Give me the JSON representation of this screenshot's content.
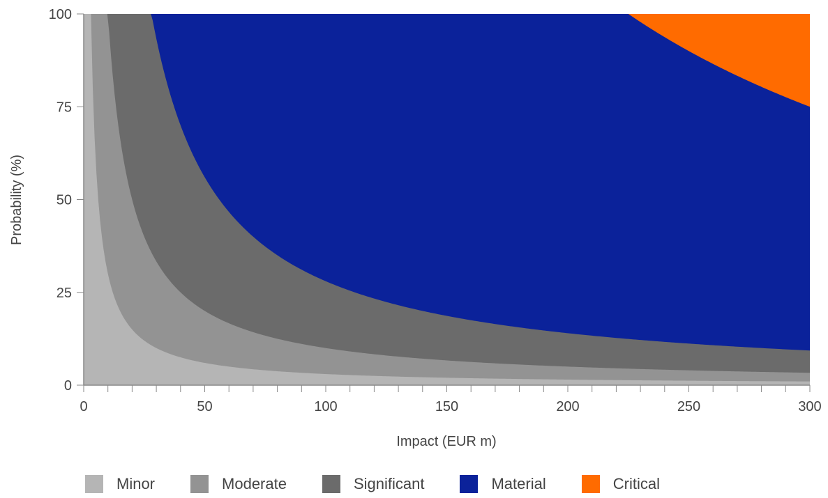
{
  "chart_data": {
    "type": "area",
    "xlabel": "Impact (EUR m)",
    "ylabel": "Probability (%)",
    "xlim": [
      0,
      300
    ],
    "ylim": [
      0,
      100
    ],
    "x_ticks": [
      "0",
      "50",
      "100",
      "150",
      "200",
      "250",
      "300"
    ],
    "y_ticks": [
      "0",
      "25",
      "50",
      "75",
      "100"
    ],
    "x_tick_values": [
      0,
      50,
      100,
      150,
      200,
      250,
      300
    ],
    "y_tick_values": [
      0,
      25,
      50,
      75,
      100
    ],
    "x_minor_tick_step": 10,
    "grid": false,
    "legend_position": "bottom",
    "band_boundaries_description": "Each region lies below the curve probability = threshold / impact; regions stacked from Minor (bottom) to Critical (top).",
    "series": [
      {
        "name": "Minor",
        "color": "#b5b5b5",
        "upper_curve_constant": 3,
        "upper_curve_formula": "y = 300 / x"
      },
      {
        "name": "Moderate",
        "color": "#939393",
        "upper_curve_constant": 10,
        "upper_curve_formula": "y = 1000 / x"
      },
      {
        "name": "Significant",
        "color": "#6b6b6b",
        "upper_curve_constant": 28,
        "upper_curve_formula": "y = 2800 / x"
      },
      {
        "name": "Material",
        "color": "#0b229a",
        "upper_curve_constant": 225,
        "upper_curve_formula": "y = 22500 / x"
      },
      {
        "name": "Critical",
        "color": "#ff6b00",
        "upper_curve_constant": null,
        "upper_curve_formula": "fills to top"
      }
    ]
  },
  "legend": {
    "items": [
      {
        "label": "Minor",
        "color": "#b5b5b5"
      },
      {
        "label": "Moderate",
        "color": "#939393"
      },
      {
        "label": "Significant",
        "color": "#6b6b6b"
      },
      {
        "label": "Material",
        "color": "#0b229a"
      },
      {
        "label": "Critical",
        "color": "#ff6b00"
      }
    ]
  }
}
